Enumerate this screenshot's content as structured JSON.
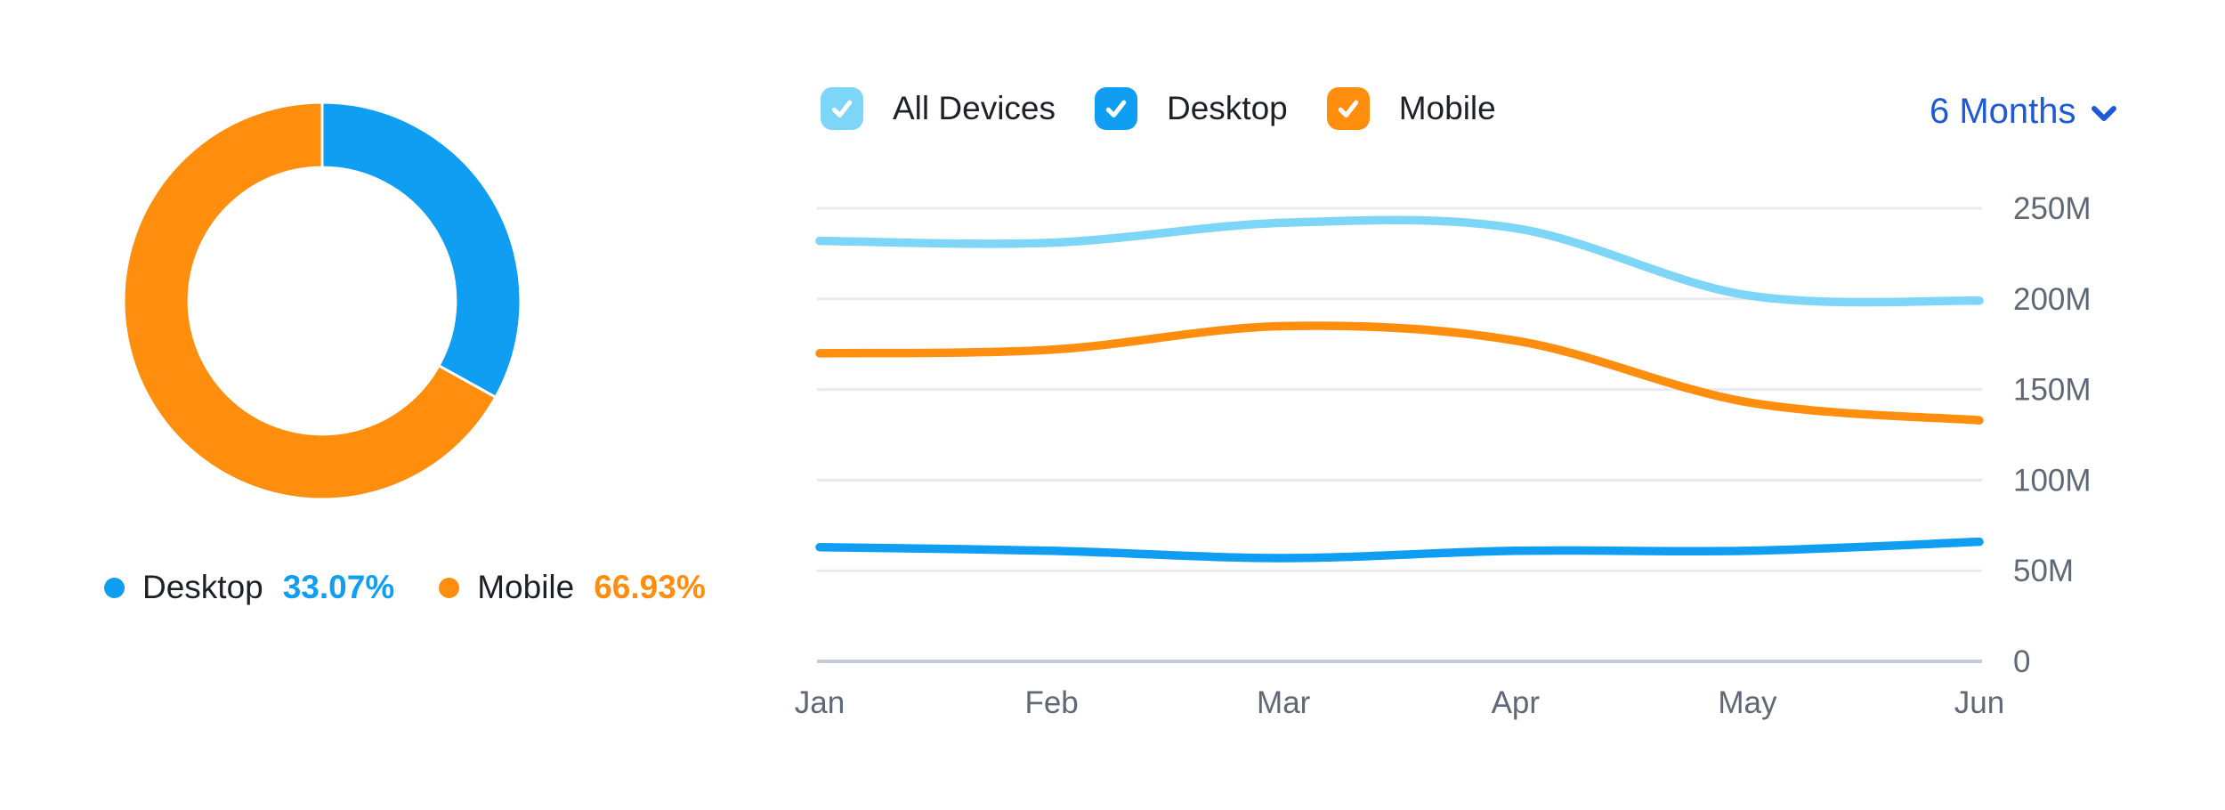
{
  "colors": {
    "desktop": "#0F9EF2",
    "mobile": "#FF8E0F",
    "all_devices": "#7DD5F7",
    "period_link": "#1E5AD6",
    "axis_label": "#5E6877",
    "gridline": "#E8EAF1",
    "baseline": "#C7CBD4",
    "legend_text": "#1c2128"
  },
  "device_toggles": [
    {
      "label": "All Devices",
      "checked": true,
      "color": "#7DD5F7"
    },
    {
      "label": "Desktop",
      "checked": true,
      "color": "#0F9EF2"
    },
    {
      "label": "Mobile",
      "checked": true,
      "color": "#FF8E0F"
    }
  ],
  "period_selector": {
    "label": "6 Months",
    "color": "#1E5AD6"
  },
  "donut_legend": [
    {
      "label": "Desktop",
      "value": "33.07%",
      "color": "#0F9EF2"
    },
    {
      "label": "Mobile",
      "value": "66.93%",
      "color": "#FF8E0F"
    }
  ],
  "chart_data": [
    {
      "type": "pie",
      "donut": true,
      "labels": [
        "Desktop",
        "Mobile"
      ],
      "values": [
        33.07,
        66.93
      ],
      "unit": "%",
      "colors": [
        "#0F9EF2",
        "#FF8E0F"
      ],
      "start_angle_deg": 0,
      "direction": "clockwise",
      "inner_radius_ratio": 0.672,
      "slice_gap_color": "#ffffff"
    },
    {
      "type": "line",
      "categories": [
        "Jan",
        "Feb",
        "Mar",
        "Apr",
        "May",
        "Jun"
      ],
      "series": [
        {
          "name": "All Devices",
          "color": "#7DD5F7",
          "values_millions": [
            232,
            231,
            242,
            239,
            202,
            199
          ]
        },
        {
          "name": "Mobile",
          "color": "#FF8E0F",
          "values_millions": [
            170,
            172,
            185,
            177,
            143,
            133
          ]
        },
        {
          "name": "Desktop",
          "color": "#0F9EF2",
          "values_millions": [
            63,
            61,
            57,
            61,
            61,
            66
          ]
        }
      ],
      "ylim_millions": [
        0,
        250
      ],
      "yticks": [
        {
          "label": "0",
          "value_millions": 0
        },
        {
          "label": "50M",
          "value_millions": 50
        },
        {
          "label": "100M",
          "value_millions": 100
        },
        {
          "label": "150M",
          "value_millions": 150
        },
        {
          "label": "200M",
          "value_millions": 200
        },
        {
          "label": "250M",
          "value_millions": 250
        }
      ],
      "grid": true,
      "tick_labels_side": "right",
      "smoothing": "catmull-rom",
      "line_width": 9.5,
      "xlabel": "",
      "ylabel": ""
    }
  ]
}
